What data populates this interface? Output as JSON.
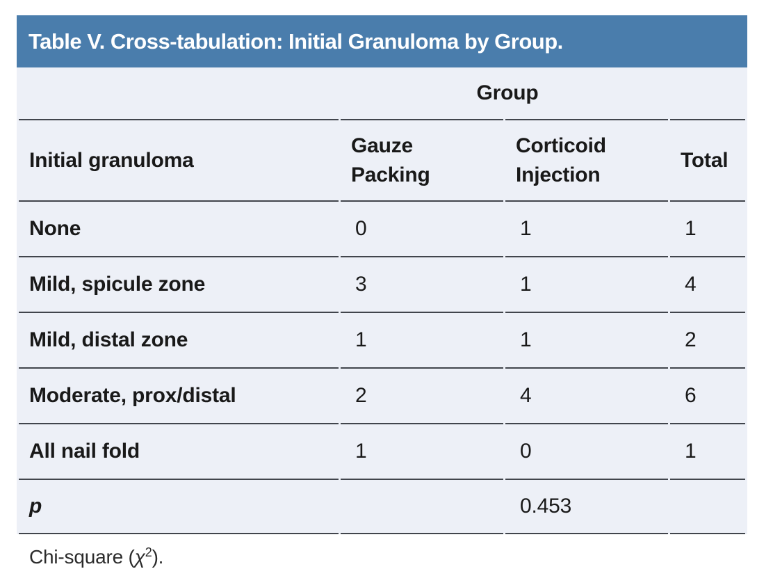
{
  "table": {
    "title": "Table V. Cross-tabulation: Initial Granuloma by Group.",
    "group_header": "Group",
    "columns": {
      "label": "Initial granuloma",
      "gauze": "Gauze\nPacking",
      "corticoid": "Corticoid\nInjection",
      "total": "Total"
    },
    "rows": [
      {
        "label": "None",
        "gauze": "0",
        "corticoid": "1",
        "total": "1"
      },
      {
        "label": "Mild, spicule zone",
        "gauze": "3",
        "corticoid": "1",
        "total": "4"
      },
      {
        "label": "Mild, distal zone",
        "gauze": "1",
        "corticoid": "1",
        "total": "2"
      },
      {
        "label": "Moderate, prox/distal",
        "gauze": "2",
        "corticoid": "4",
        "total": "6"
      },
      {
        "label": "All nail fold",
        "gauze": "1",
        "corticoid": "0",
        "total": "1"
      }
    ],
    "p_row": {
      "label": "p",
      "value": "0.453"
    }
  },
  "footnote": {
    "prefix": "Chi-square (",
    "chi": "χ",
    "sup": "2",
    "suffix": ")."
  },
  "colors": {
    "title_bar": "#4a7dac",
    "title_text": "#ffffff",
    "body_background": "#edf0f7",
    "rule": "#41454c",
    "text": "#191919",
    "page_background": "#ffffff"
  }
}
